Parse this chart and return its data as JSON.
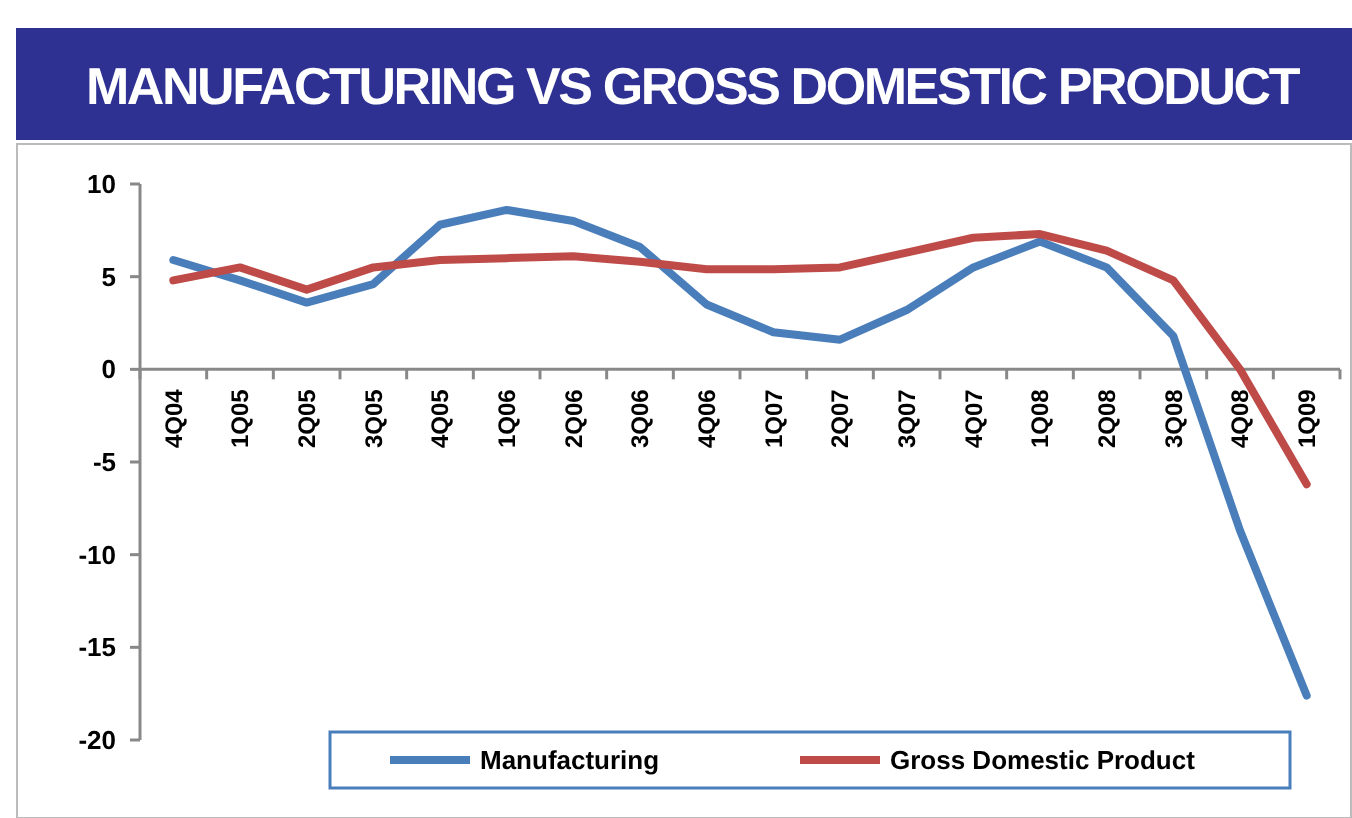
{
  "chart_data": {
    "type": "line",
    "title": "MANUFACTURING VS GROSS DOMESTIC PRODUCT",
    "categories": [
      "4Q04",
      "1Q05",
      "2Q05",
      "3Q05",
      "4Q05",
      "1Q06",
      "2Q06",
      "3Q06",
      "4Q06",
      "1Q07",
      "2Q07",
      "3Q07",
      "4Q07",
      "1Q08",
      "2Q08",
      "3Q08",
      "4Q08",
      "1Q09"
    ],
    "series": [
      {
        "name": "Manufacturing",
        "color": "#4a7ebb",
        "values": [
          5.9,
          4.8,
          3.6,
          4.6,
          7.8,
          8.6,
          8.0,
          6.6,
          3.5,
          2.0,
          1.6,
          3.2,
          5.5,
          6.9,
          5.5,
          1.8,
          -8.7,
          -17.6
        ]
      },
      {
        "name": "Gross Domestic Product",
        "color": "#be4b48",
        "values": [
          4.8,
          5.5,
          4.3,
          5.5,
          5.9,
          6.0,
          6.1,
          5.8,
          5.4,
          5.4,
          5.5,
          6.3,
          7.1,
          7.3,
          6.4,
          4.8,
          0.0,
          -6.2
        ]
      }
    ],
    "ylim": [
      -20,
      10
    ],
    "yticks": [
      -20,
      -15,
      -10,
      -5,
      0,
      5,
      10
    ],
    "grid": false,
    "legend": "bottom",
    "marker": "none",
    "line_style": "solid"
  }
}
